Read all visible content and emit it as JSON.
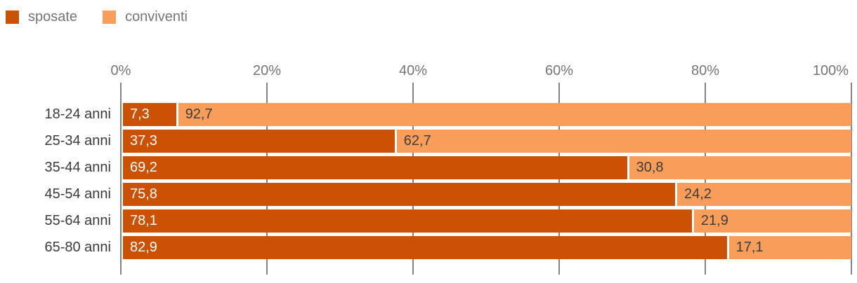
{
  "legend": {
    "items": [
      {
        "label": "sposate",
        "color": "#cb5204"
      },
      {
        "label": "conviventi",
        "color": "#f89e5a"
      }
    ]
  },
  "x_axis": {
    "tick_labels": [
      "0%",
      "20%",
      "40%",
      "60%",
      "80%",
      "100%"
    ]
  },
  "chart_data": {
    "type": "bar",
    "orientation": "horizontal",
    "stacked": true,
    "unit": "%",
    "title": "",
    "xlabel": "",
    "ylabel": "",
    "xlim": [
      0,
      100
    ],
    "x_ticks": [
      0,
      20,
      40,
      60,
      80,
      100
    ],
    "grid": true,
    "legend_position": "top-left",
    "categories": [
      "18-24 anni",
      "25-34 anni",
      "35-44 anni",
      "45-54 anni",
      "55-64 anni",
      "65-80 anni"
    ],
    "series": [
      {
        "name": "sposate",
        "color": "#cb5204",
        "values": [
          7.3,
          37.3,
          69.2,
          75.8,
          78.1,
          82.9
        ],
        "value_labels": [
          "7,3",
          "37,3",
          "69,2",
          "75,8",
          "78,1",
          "82,9"
        ]
      },
      {
        "name": "conviventi",
        "color": "#f89e5a",
        "values": [
          92.7,
          62.7,
          30.8,
          24.2,
          21.9,
          17.1
        ],
        "value_labels": [
          "92,7",
          "62,7",
          "30,8",
          "24,2",
          "21,9",
          "17,1"
        ]
      }
    ]
  },
  "colors": {
    "grid_line": "#828282",
    "axis_label_text": "#757575",
    "legend_text": "#757575",
    "category_label_text": "#3b3b3b",
    "value_on_dark": "#ffffff",
    "value_on_light": "#3d3d3d",
    "background": "#ffffff"
  }
}
